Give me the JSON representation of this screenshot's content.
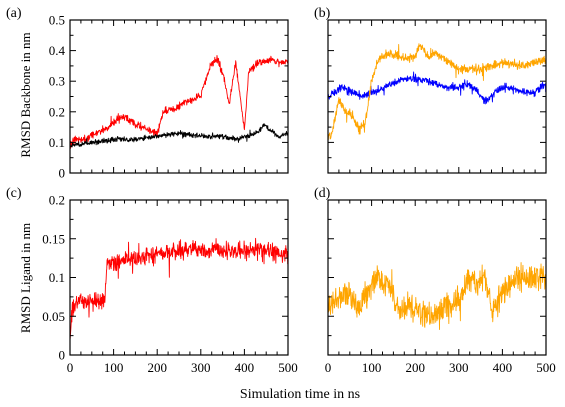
{
  "figure": {
    "shared_xlabel": "Simulation time in ns",
    "ylabel_top": "RMSD Backbone in nm",
    "ylabel_bottom": "RMSD Ligand in nm"
  },
  "colors": {
    "red": "#ff0000",
    "black": "#000000",
    "blue": "#0000ff",
    "orange": "#ffa500"
  },
  "chart_data": [
    {
      "panel_label": "(a)",
      "type": "line",
      "xlim": [
        0,
        500
      ],
      "ylim": [
        0,
        0.5
      ],
      "xticks": [
        0,
        100,
        200,
        300,
        400,
        500
      ],
      "yticks": [
        0,
        0.1,
        0.2,
        0.3,
        0.4,
        0.5
      ],
      "xticklabels": [],
      "yticklabels": [
        "0",
        "0.1",
        "0.2",
        "0.3",
        "0.4",
        "0.5"
      ],
      "series": [
        {
          "color": "#ff0000",
          "noise": 0.018,
          "points": [
            [
              0,
              0.09
            ],
            [
              10,
              0.11
            ],
            [
              30,
              0.11
            ],
            [
              60,
              0.13
            ],
            [
              90,
              0.15
            ],
            [
              110,
              0.18
            ],
            [
              130,
              0.18
            ],
            [
              150,
              0.16
            ],
            [
              180,
              0.14
            ],
            [
              200,
              0.13
            ],
            [
              215,
              0.2
            ],
            [
              240,
              0.21
            ],
            [
              260,
              0.23
            ],
            [
              280,
              0.24
            ],
            [
              300,
              0.25
            ],
            [
              310,
              0.3
            ],
            [
              325,
              0.36
            ],
            [
              340,
              0.37
            ],
            [
              355,
              0.3
            ],
            [
              365,
              0.22
            ],
            [
              380,
              0.36
            ],
            [
              395,
              0.2
            ],
            [
              400,
              0.14
            ],
            [
              410,
              0.33
            ],
            [
              430,
              0.36
            ],
            [
              460,
              0.37
            ],
            [
              490,
              0.36
            ],
            [
              500,
              0.37
            ]
          ]
        },
        {
          "color": "#000000",
          "noise": 0.012,
          "points": [
            [
              0,
              0.09
            ],
            [
              50,
              0.1
            ],
            [
              100,
              0.11
            ],
            [
              150,
              0.11
            ],
            [
              200,
              0.12
            ],
            [
              250,
              0.13
            ],
            [
              300,
              0.12
            ],
            [
              350,
              0.12
            ],
            [
              380,
              0.11
            ],
            [
              400,
              0.12
            ],
            [
              430,
              0.13
            ],
            [
              445,
              0.16
            ],
            [
              460,
              0.14
            ],
            [
              480,
              0.12
            ],
            [
              500,
              0.13
            ]
          ]
        }
      ]
    },
    {
      "panel_label": "(b)",
      "type": "line",
      "xlim": [
        0,
        500
      ],
      "ylim": [
        0,
        0.5
      ],
      "xticks": [
        0,
        100,
        200,
        300,
        400,
        500
      ],
      "yticks": [
        0,
        0.1,
        0.2,
        0.3,
        0.4,
        0.5
      ],
      "xticklabels": [],
      "yticklabels": [],
      "series": [
        {
          "color": "#0000ff",
          "noise": 0.018,
          "points": [
            [
              0,
              0.25
            ],
            [
              30,
              0.28
            ],
            [
              60,
              0.26
            ],
            [
              80,
              0.25
            ],
            [
              100,
              0.26
            ],
            [
              130,
              0.28
            ],
            [
              160,
              0.3
            ],
            [
              190,
              0.31
            ],
            [
              230,
              0.3
            ],
            [
              270,
              0.28
            ],
            [
              300,
              0.28
            ],
            [
              320,
              0.29
            ],
            [
              340,
              0.27
            ],
            [
              360,
              0.23
            ],
            [
              380,
              0.26
            ],
            [
              400,
              0.28
            ],
            [
              440,
              0.27
            ],
            [
              470,
              0.26
            ],
            [
              500,
              0.29
            ]
          ]
        },
        {
          "color": "#ffa500",
          "noise": 0.022,
          "points": [
            [
              0,
              0.11
            ],
            [
              10,
              0.14
            ],
            [
              25,
              0.24
            ],
            [
              40,
              0.2
            ],
            [
              55,
              0.19
            ],
            [
              70,
              0.14
            ],
            [
              85,
              0.16
            ],
            [
              100,
              0.3
            ],
            [
              115,
              0.37
            ],
            [
              140,
              0.39
            ],
            [
              170,
              0.38
            ],
            [
              200,
              0.38
            ],
            [
              210,
              0.42
            ],
            [
              230,
              0.38
            ],
            [
              250,
              0.39
            ],
            [
              270,
              0.37
            ],
            [
              300,
              0.34
            ],
            [
              350,
              0.34
            ],
            [
              400,
              0.36
            ],
            [
              450,
              0.35
            ],
            [
              500,
              0.37
            ]
          ]
        }
      ]
    },
    {
      "panel_label": "(c)",
      "type": "line",
      "xlim": [
        0,
        500
      ],
      "ylim": [
        0,
        0.2
      ],
      "xticks": [
        0,
        100,
        200,
        300,
        400,
        500
      ],
      "yticks": [
        0,
        0.05,
        0.1,
        0.15,
        0.2
      ],
      "xticklabels": [
        "0",
        "100",
        "200",
        "300",
        "400",
        "500"
      ],
      "yticklabels": [
        "0",
        "0.05",
        "0.1",
        "0.15",
        "0.2"
      ],
      "series": [
        {
          "color": "#ff0000",
          "noise": 0.016,
          "points": [
            [
              0,
              0.02
            ],
            [
              5,
              0.06
            ],
            [
              20,
              0.07
            ],
            [
              50,
              0.07
            ],
            [
              80,
              0.07
            ],
            [
              85,
              0.12
            ],
            [
              100,
              0.12
            ],
            [
              150,
              0.125
            ],
            [
              200,
              0.13
            ],
            [
              250,
              0.135
            ],
            [
              300,
              0.135
            ],
            [
              350,
              0.135
            ],
            [
              400,
              0.135
            ],
            [
              450,
              0.135
            ],
            [
              500,
              0.13
            ]
          ]
        }
      ]
    },
    {
      "panel_label": "(d)",
      "type": "line",
      "xlim": [
        0,
        500
      ],
      "ylim": [
        0,
        0.2
      ],
      "xticks": [
        0,
        100,
        200,
        300,
        400,
        500
      ],
      "yticks": [
        0,
        0.05,
        0.1,
        0.15,
        0.2
      ],
      "xticklabels": [
        "0",
        "100",
        "200",
        "300",
        "400",
        "500"
      ],
      "yticklabels": [],
      "series": [
        {
          "color": "#ffa500",
          "noise": 0.024,
          "points": [
            [
              0,
              0.06
            ],
            [
              20,
              0.07
            ],
            [
              50,
              0.08
            ],
            [
              70,
              0.06
            ],
            [
              90,
              0.08
            ],
            [
              110,
              0.1
            ],
            [
              140,
              0.09
            ],
            [
              160,
              0.06
            ],
            [
              200,
              0.06
            ],
            [
              230,
              0.05
            ],
            [
              260,
              0.06
            ],
            [
              300,
              0.07
            ],
            [
              320,
              0.1
            ],
            [
              340,
              0.09
            ],
            [
              360,
              0.1
            ],
            [
              375,
              0.06
            ],
            [
              385,
              0.06
            ],
            [
              400,
              0.08
            ],
            [
              430,
              0.1
            ],
            [
              460,
              0.1
            ],
            [
              500,
              0.1
            ]
          ]
        }
      ]
    }
  ]
}
